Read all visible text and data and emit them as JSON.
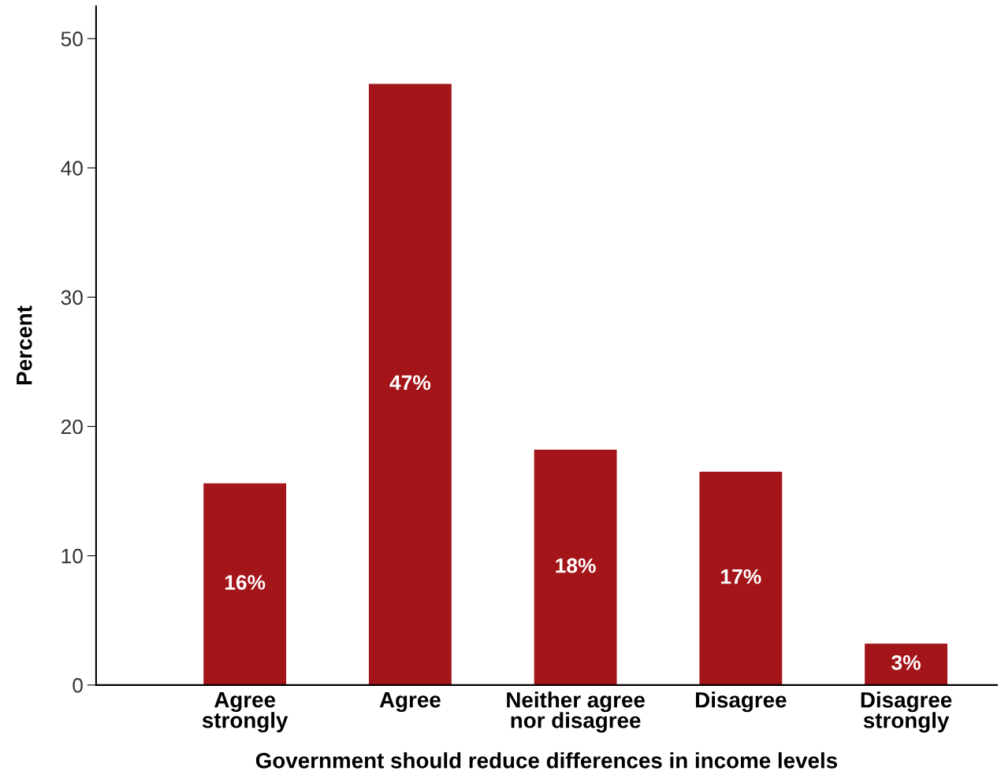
{
  "chart_data": {
    "type": "bar",
    "xlabel": "Government should reduce differences in income levels",
    "ylabel": "Percent",
    "categories": [
      "Agree\nstrongly",
      "Agree",
      "Neither agree\nnor disagree",
      "Disagree",
      "Disagree\nstrongly"
    ],
    "values": [
      15.6,
      46.5,
      18.2,
      16.5,
      3.2
    ],
    "value_labels": [
      "16%",
      "47%",
      "18%",
      "17%",
      "3%"
    ],
    "color": "#a31519",
    "ylim": [
      0,
      52.5
    ],
    "yticks": [
      0,
      10,
      20,
      30,
      40,
      50
    ],
    "grid": false
  }
}
